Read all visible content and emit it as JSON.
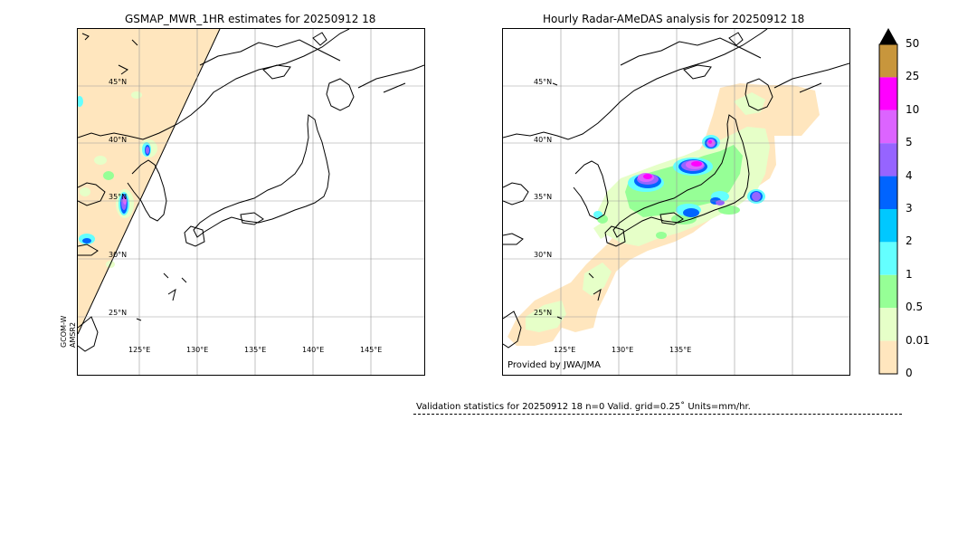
{
  "left_panel": {
    "title": "GSMAP_MWR_1HR estimates for 20250912 18",
    "side_label_1": "GCOM-W",
    "side_label_2": "AMSR2",
    "lat_labels": [
      "45°N",
      "40°N",
      "35°N",
      "30°N",
      "25°N"
    ],
    "lon_labels": [
      "125°E",
      "130°E",
      "135°E",
      "140°E",
      "145°E"
    ]
  },
  "right_panel": {
    "title": "Hourly Radar-AMeDAS analysis for 20250912 18",
    "provided_by": "Provided by JWA/JMA",
    "lat_labels": [
      "45°N",
      "40°N",
      "35°N",
      "30°N",
      "25°N"
    ],
    "lon_labels": [
      "125°E",
      "130°E",
      "135°E"
    ]
  },
  "colorbar": {
    "levels": [
      "50",
      "25",
      "10",
      "5",
      "4",
      "3",
      "2",
      "1",
      "0.5",
      "0.01",
      "0"
    ],
    "colors": [
      "#c8963c",
      "#ff00ff",
      "#dc64ff",
      "#9664ff",
      "#0064ff",
      "#00c8ff",
      "#64ffff",
      "#96ff96",
      "#e6ffc8",
      "#ffe6be"
    ],
    "overflow_color": "#000000"
  },
  "footer": {
    "validation_text": "Validation statistics for 20250912 18  n=0 Valid. grid=0.25˚ Units=mm/hr."
  }
}
